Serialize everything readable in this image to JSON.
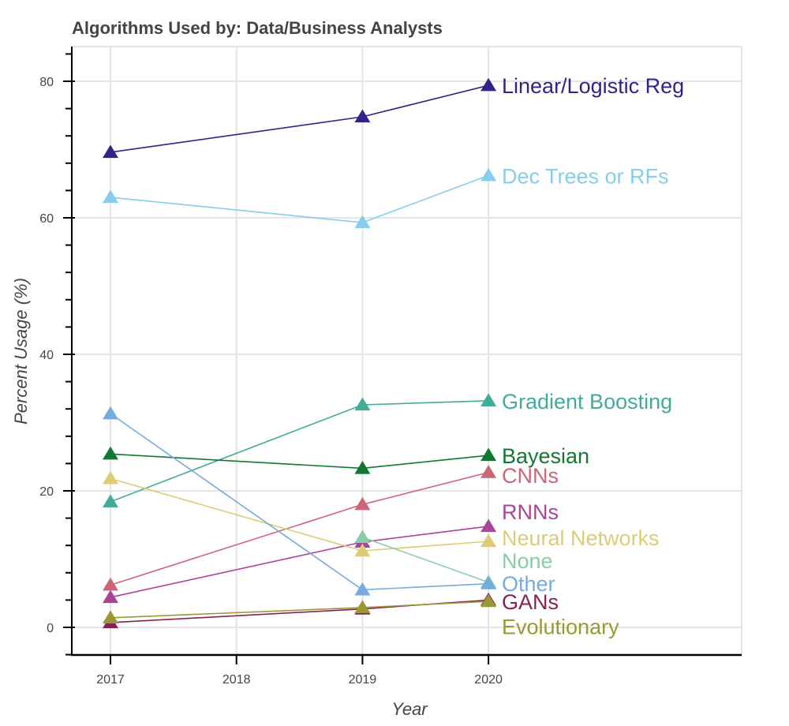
{
  "chart_data": {
    "type": "line",
    "title": "Algorithms Used by: Data/Business Analysts",
    "xlabel": "Year",
    "ylabel": "Percent Usage (%)",
    "x_ticks": [
      "2017",
      "2018",
      "2019",
      "2020"
    ],
    "y_ticks": [
      "0",
      "20",
      "40",
      "60",
      "80"
    ],
    "xlim": [
      2016.7,
      2022.0
    ],
    "ylim": [
      -4,
      85
    ],
    "grid": true,
    "marker": "triangle",
    "legend": "inline labels at right end of each series",
    "series": [
      {
        "name": "Linear/Logistic Reg",
        "color": "#332288",
        "x": [
          2017,
          2019,
          2020
        ],
        "values": [
          69.6,
          74.8,
          79.4
        ]
      },
      {
        "name": "Dec Trees or RFs",
        "color": "#88CCEE",
        "x": [
          2017,
          2019,
          2020
        ],
        "values": [
          63.0,
          59.3,
          66.2
        ]
      },
      {
        "name": "Gradient Boosting",
        "color": "#44AA99",
        "x": [
          2017,
          2019,
          2020
        ],
        "values": [
          18.4,
          32.6,
          33.2
        ]
      },
      {
        "name": "Bayesian",
        "color": "#117733",
        "x": [
          2017,
          2019,
          2020
        ],
        "values": [
          25.4,
          23.3,
          25.2
        ]
      },
      {
        "name": "CNNs",
        "color": "#CC6677",
        "x": [
          2017,
          2019,
          2020
        ],
        "values": [
          6.2,
          18.0,
          22.7
        ]
      },
      {
        "name": "RNNs",
        "color": "#AA4499",
        "x": [
          2017,
          2019,
          2020
        ],
        "values": [
          4.4,
          12.5,
          14.8
        ]
      },
      {
        "name": "Neural Networks",
        "color": "#DDCC77",
        "x": [
          2017,
          2019,
          2020
        ],
        "values": [
          21.8,
          11.2,
          12.6
        ]
      },
      {
        "name": "None",
        "color": "#88CCAA",
        "x": [
          2019,
          2020
        ],
        "values": [
          13.2,
          6.6
        ]
      },
      {
        "name": "Other",
        "color": "#77AADD",
        "x": [
          2017,
          2019,
          2020
        ],
        "values": [
          31.3,
          5.5,
          6.4
        ]
      },
      {
        "name": "GANs",
        "color": "#882255",
        "x": [
          2017,
          2019,
          2020
        ],
        "values": [
          0.7,
          2.7,
          4.0
        ]
      },
      {
        "name": "Evolutionary",
        "color": "#999933",
        "x": [
          2017,
          2019,
          2020
        ],
        "values": [
          1.4,
          2.9,
          3.8
        ]
      }
    ]
  }
}
